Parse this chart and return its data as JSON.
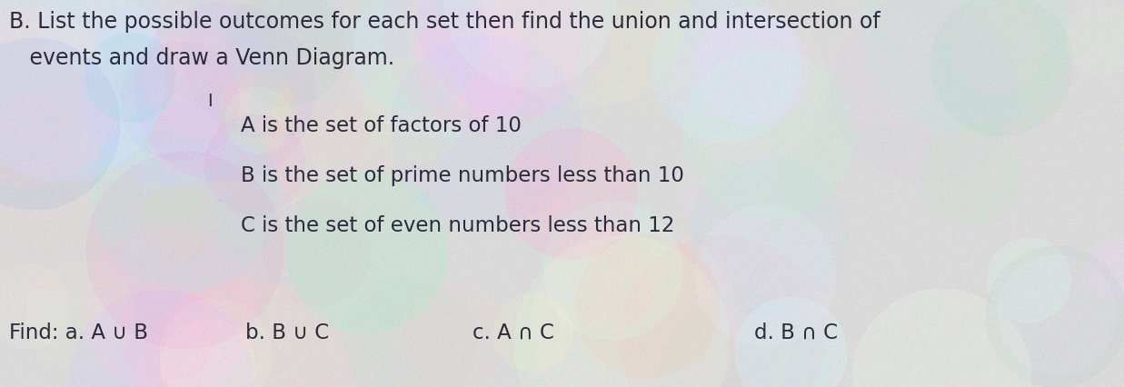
{
  "bg_color": "#d8d8d8",
  "title_line1": "B. List the possible outcomes for each set then find the union and intersection of",
  "title_line2": "   events and draw a Venn Diagram.",
  "set_A": "A is the set of factors of 10",
  "set_B": "B is the set of prime numbers less than 10",
  "set_C": "C is the set of even numbers less than 12",
  "find_label": "Find: a. A ∪ B",
  "find_b": "b. B ∪ C",
  "find_c": "c. A ∩ C",
  "find_d": "d. B ∩ C",
  "text_color": "#2b2b3b",
  "font_size_title": 17,
  "font_size_sets": 16.5,
  "font_size_find": 16.5,
  "cursor_char": "I"
}
